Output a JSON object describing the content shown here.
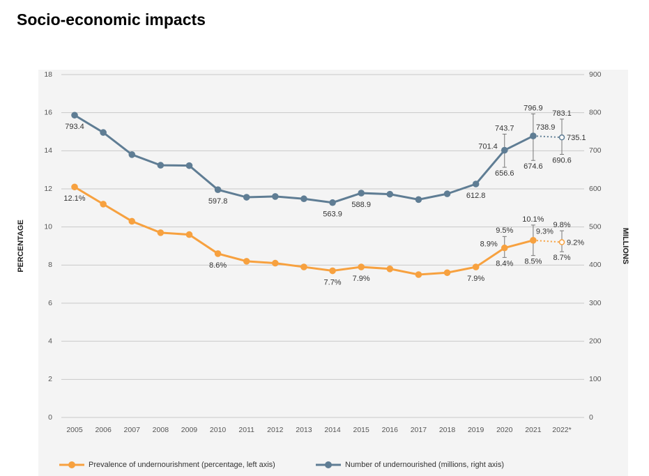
{
  "chart_data": {
    "type": "line",
    "title": "Socio-economic impacts",
    "categories": [
      "2005",
      "2006",
      "2007",
      "2008",
      "2009",
      "2010",
      "2011",
      "2012",
      "2013",
      "2014",
      "2015",
      "2016",
      "2017",
      "2018",
      "2019",
      "2020",
      "2021",
      "2022*"
    ],
    "projected": [
      "2022*"
    ],
    "ylabel": "PERCENTAGE",
    "y2label": "MILLIONS",
    "ylim": [
      0,
      18
    ],
    "yticks": [
      0,
      2,
      4,
      6,
      8,
      10,
      12,
      14,
      16,
      18
    ],
    "y2lim": [
      0,
      900
    ],
    "y2ticks": [
      0,
      100,
      200,
      300,
      400,
      500,
      600,
      700,
      800,
      900
    ],
    "grid": true,
    "legend": "bottom",
    "series": [
      {
        "name": "Prevalence of undernourishment (percentage, left axis)",
        "color": "#f7a13f",
        "axis": "y",
        "values": [
          12.1,
          11.2,
          10.3,
          9.7,
          9.6,
          8.6,
          8.2,
          8.1,
          7.9,
          7.7,
          7.9,
          7.8,
          7.5,
          7.6,
          7.9,
          8.9,
          9.3,
          9.2
        ],
        "value_labels": [
          "12.1%",
          null,
          null,
          null,
          null,
          "8.6%",
          null,
          null,
          null,
          "7.7%",
          "7.9%",
          null,
          null,
          null,
          "7.9%",
          "8.9%",
          "9.3%",
          "9.2%"
        ],
        "error_low": [
          null,
          null,
          null,
          null,
          null,
          null,
          null,
          null,
          null,
          null,
          null,
          null,
          null,
          null,
          null,
          8.4,
          8.5,
          8.7
        ],
        "error_high": [
          null,
          null,
          null,
          null,
          null,
          null,
          null,
          null,
          null,
          null,
          null,
          null,
          null,
          null,
          null,
          9.5,
          10.1,
          9.8
        ],
        "error_low_labels": [
          null,
          null,
          null,
          null,
          null,
          null,
          null,
          null,
          null,
          null,
          null,
          null,
          null,
          null,
          null,
          "8.4%",
          "8.5%",
          "8.7%"
        ],
        "error_high_labels": [
          null,
          null,
          null,
          null,
          null,
          null,
          null,
          null,
          null,
          null,
          null,
          null,
          null,
          null,
          null,
          "9.5%",
          "10.1%",
          "9.8%"
        ]
      },
      {
        "name": "Number of undernourished (millions, right axis)",
        "color": "#5f7d94",
        "axis": "y2",
        "values": [
          793.4,
          748,
          690,
          662,
          661,
          597.8,
          578,
          580,
          574,
          563.9,
          588.9,
          586,
          572,
          587,
          612.8,
          701.4,
          738.9,
          735.1
        ],
        "value_labels": [
          "793.4",
          null,
          null,
          null,
          null,
          "597.8",
          null,
          null,
          null,
          "563.9",
          "588.9",
          null,
          null,
          null,
          "612.8",
          "701.4",
          "738.9",
          "735.1"
        ],
        "error_low": [
          null,
          null,
          null,
          null,
          null,
          null,
          null,
          null,
          null,
          null,
          null,
          null,
          null,
          null,
          null,
          656.6,
          674.6,
          690.6
        ],
        "error_high": [
          null,
          null,
          null,
          null,
          null,
          null,
          null,
          null,
          null,
          null,
          null,
          null,
          null,
          null,
          null,
          743.7,
          796.9,
          783.1
        ],
        "error_low_labels": [
          null,
          null,
          null,
          null,
          null,
          null,
          null,
          null,
          null,
          null,
          null,
          null,
          null,
          null,
          null,
          "656.6",
          "674.6",
          "690.6"
        ],
        "error_high_labels": [
          null,
          null,
          null,
          null,
          null,
          null,
          null,
          null,
          null,
          null,
          null,
          null,
          null,
          null,
          null,
          "743.7",
          "796.9",
          "783.1"
        ]
      }
    ]
  }
}
